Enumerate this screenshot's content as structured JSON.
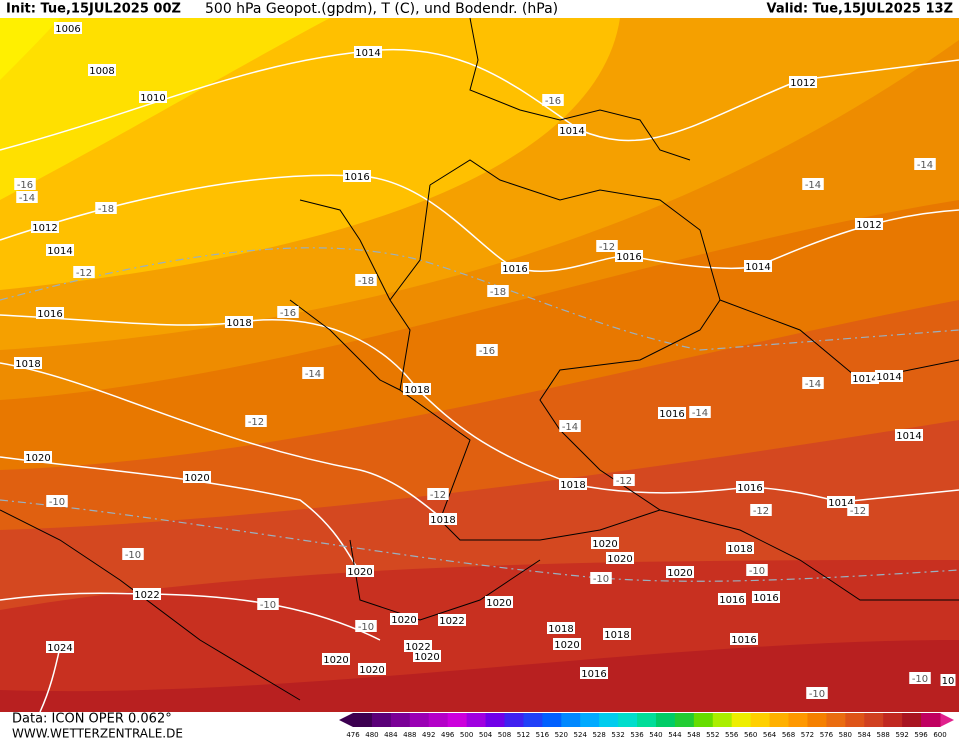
{
  "header": {
    "init": "Init: Tue,15JUL2025 00Z",
    "title": "500 hPa Geopot.(gpdm), T (C), und Bodendr. (hPa)",
    "valid": "Valid: Tue,15JUL2025 13Z"
  },
  "footer": {
    "data": "Data: ICON OPER 0.062°",
    "site": "WWW.WETTERZENTRALE.DE"
  },
  "map": {
    "labels": [
      "1006",
      "1008",
      "1010",
      "1014",
      "1012",
      "1014",
      "-16",
      "-14",
      "-14",
      "1016",
      "-16",
      "-14",
      "-18",
      "1012",
      "1014",
      "-12",
      "1012",
      "-12",
      "1016",
      "1016",
      "1014",
      "-18",
      "-18",
      "1016",
      "1018",
      "-16",
      "-16",
      "1018",
      "-14",
      "-14",
      "1014",
      "1014",
      "1018",
      "1016",
      "-14",
      "-12",
      "-14",
      "1014",
      "1020",
      "1020",
      "-12",
      "1018",
      "1016",
      "-10",
      "-12",
      "1014",
      "-12",
      "-12",
      "1018",
      "1020",
      "1020",
      "1018",
      "-10",
      "1020",
      "-10",
      "1020",
      "-10",
      "1022",
      "-10",
      "1020",
      "1016",
      "1016",
      "1020",
      "1022",
      "-10",
      "1018",
      "1018",
      "1016",
      "1024",
      "1022",
      "1020",
      "1020",
      "1020",
      "1020",
      "1016",
      "-10",
      "-10",
      "10"
    ]
  },
  "colorbar": {
    "ticks": [
      476,
      480,
      484,
      488,
      492,
      496,
      500,
      504,
      508,
      512,
      516,
      520,
      524,
      528,
      532,
      536,
      540,
      544,
      548,
      552,
      556,
      560,
      564,
      568,
      572,
      576,
      580,
      584,
      588,
      592,
      596,
      600
    ],
    "colors": [
      "#3c0050",
      "#5a0078",
      "#7a0096",
      "#9a00b4",
      "#b400c8",
      "#cc00dc",
      "#a000e0",
      "#7000e8",
      "#4020f0",
      "#2040f8",
      "#0060ff",
      "#0088ff",
      "#00aaff",
      "#00ccee",
      "#00ddcc",
      "#00dd99",
      "#00cc66",
      "#22cc33",
      "#66dd00",
      "#aaee00",
      "#eeee00",
      "#ffd000",
      "#ffb000",
      "#ff9800",
      "#f58000",
      "#ea6c10",
      "#de5418",
      "#d04020",
      "#c02820",
      "#a81420",
      "#c00060"
    ]
  }
}
